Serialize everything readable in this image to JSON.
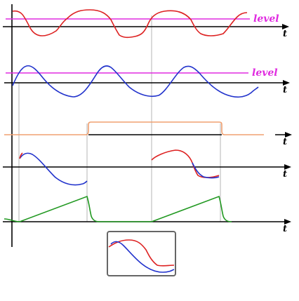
{
  "axes": {
    "t_label": "t"
  },
  "level_label": "level",
  "colors": {
    "red": "#dd2222",
    "blue": "#2233cc",
    "magenta": "#e02be0",
    "orange": "#f0a070",
    "green": "#229922",
    "axis": "#000000",
    "guide": "#b4b4b4",
    "inset_border": "#666666"
  }
}
